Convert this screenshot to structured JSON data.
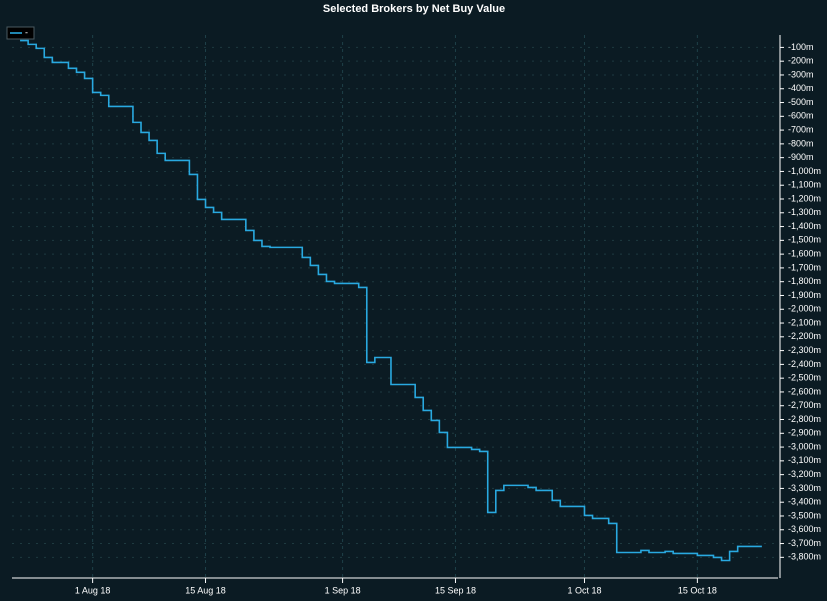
{
  "chart_data": {
    "type": "step",
    "title": "Selected Brokers by Net Buy Value",
    "x": [
      "2018-07-23",
      "2018-07-24",
      "2018-07-25",
      "2018-07-26",
      "2018-07-27",
      "2018-07-29",
      "2018-07-30",
      "2018-07-31",
      "2018-08-01",
      "2018-08-02",
      "2018-08-03",
      "2018-08-06",
      "2018-08-07",
      "2018-08-08",
      "2018-08-09",
      "2018-08-10",
      "2018-08-13",
      "2018-08-14",
      "2018-08-15",
      "2018-08-16",
      "2018-08-17",
      "2018-08-20",
      "2018-08-21",
      "2018-08-22",
      "2018-08-23",
      "2018-08-27",
      "2018-08-28",
      "2018-08-29",
      "2018-08-30",
      "2018-08-31",
      "2018-09-03",
      "2018-09-04",
      "2018-09-05",
      "2018-09-07",
      "2018-09-10",
      "2018-09-11",
      "2018-09-12",
      "2018-09-13",
      "2018-09-14",
      "2018-09-17",
      "2018-09-18",
      "2018-09-19",
      "2018-09-20",
      "2018-09-21",
      "2018-09-24",
      "2018-09-25",
      "2018-09-27",
      "2018-09-28",
      "2018-10-01",
      "2018-10-02",
      "2018-10-04",
      "2018-10-05",
      "2018-10-08",
      "2018-10-09",
      "2018-10-11",
      "2018-10-12",
      "2018-10-15",
      "2018-10-17",
      "2018-10-18",
      "2018-10-19",
      "2018-10-20",
      "2018-10-23"
    ],
    "series": [
      {
        "name": "-",
        "color": "#29a9e0",
        "values": [
          -50,
          -78,
          -107,
          -173,
          -209,
          -252,
          -281,
          -325,
          -427,
          -448,
          -528,
          -644,
          -717,
          -775,
          -869,
          -920,
          -1022,
          -1203,
          -1261,
          -1297,
          -1348,
          -1428,
          -1501,
          -1544,
          -1551,
          -1624,
          -1682,
          -1747,
          -1798,
          -1813,
          -1842,
          -2386,
          -2350,
          -2546,
          -2640,
          -2734,
          -2807,
          -2894,
          -3003,
          -3017,
          -3032,
          -3474,
          -3315,
          -3278,
          -3293,
          -3315,
          -3387,
          -3431,
          -3496,
          -3518,
          -3554,
          -3765,
          -3750,
          -3765,
          -3757,
          -3772,
          -3786,
          -3801,
          -3823,
          -3757,
          -3721,
          -3721
        ]
      }
    ],
    "xlim": [
      "2018-07-22",
      "2018-10-25"
    ],
    "xticks": [
      {
        "value": "2018-08-01",
        "label": "1 Aug 18"
      },
      {
        "value": "2018-08-15",
        "label": "15 Aug 18"
      },
      {
        "value": "2018-09-01",
        "label": "1 Sep 18"
      },
      {
        "value": "2018-09-15",
        "label": "15 Sep 18"
      },
      {
        "value": "2018-10-01",
        "label": "1 Oct 18"
      },
      {
        "value": "2018-10-15",
        "label": "15 Oct 18"
      }
    ],
    "ylim": [
      -10,
      -3950
    ],
    "yticks": [
      {
        "value": -100,
        "label": "-100m"
      },
      {
        "value": -200,
        "label": "-200m"
      },
      {
        "value": -300,
        "label": "-300m"
      },
      {
        "value": -400,
        "label": "-400m"
      },
      {
        "value": -500,
        "label": "-500m"
      },
      {
        "value": -600,
        "label": "-600m"
      },
      {
        "value": -700,
        "label": "-700m"
      },
      {
        "value": -800,
        "label": "-800m"
      },
      {
        "value": -900,
        "label": "-900m"
      },
      {
        "value": -1000,
        "label": "-1,000m"
      },
      {
        "value": -1100,
        "label": "-1,100m"
      },
      {
        "value": -1200,
        "label": "-1,200m"
      },
      {
        "value": -1300,
        "label": "-1,300m"
      },
      {
        "value": -1400,
        "label": "-1,400m"
      },
      {
        "value": -1500,
        "label": "-1,500m"
      },
      {
        "value": -1600,
        "label": "-1,600m"
      },
      {
        "value": -1700,
        "label": "-1,700m"
      },
      {
        "value": -1800,
        "label": "-1,800m"
      },
      {
        "value": -1900,
        "label": "-1,900m"
      },
      {
        "value": -2000,
        "label": "-2,000m"
      },
      {
        "value": -2100,
        "label": "-2,100m"
      },
      {
        "value": -2200,
        "label": "-2,200m"
      },
      {
        "value": -2300,
        "label": "-2,300m"
      },
      {
        "value": -2400,
        "label": "-2,400m"
      },
      {
        "value": -2500,
        "label": "-2,500m"
      },
      {
        "value": -2600,
        "label": "-2,600m"
      },
      {
        "value": -2700,
        "label": "-2,700m"
      },
      {
        "value": -2800,
        "label": "-2,800m"
      },
      {
        "value": -2900,
        "label": "-2,900m"
      },
      {
        "value": -3000,
        "label": "-3,000m"
      },
      {
        "value": -3100,
        "label": "-3,100m"
      },
      {
        "value": -3200,
        "label": "-3,200m"
      },
      {
        "value": -3300,
        "label": "-3,300m"
      },
      {
        "value": -3400,
        "label": "-3,400m"
      },
      {
        "value": -3500,
        "label": "-3,500m"
      },
      {
        "value": -3600,
        "label": "-3,600m"
      },
      {
        "value": -3700,
        "label": "-3,700m"
      },
      {
        "value": -3800,
        "label": "-3,800m"
      }
    ],
    "grid": true
  }
}
